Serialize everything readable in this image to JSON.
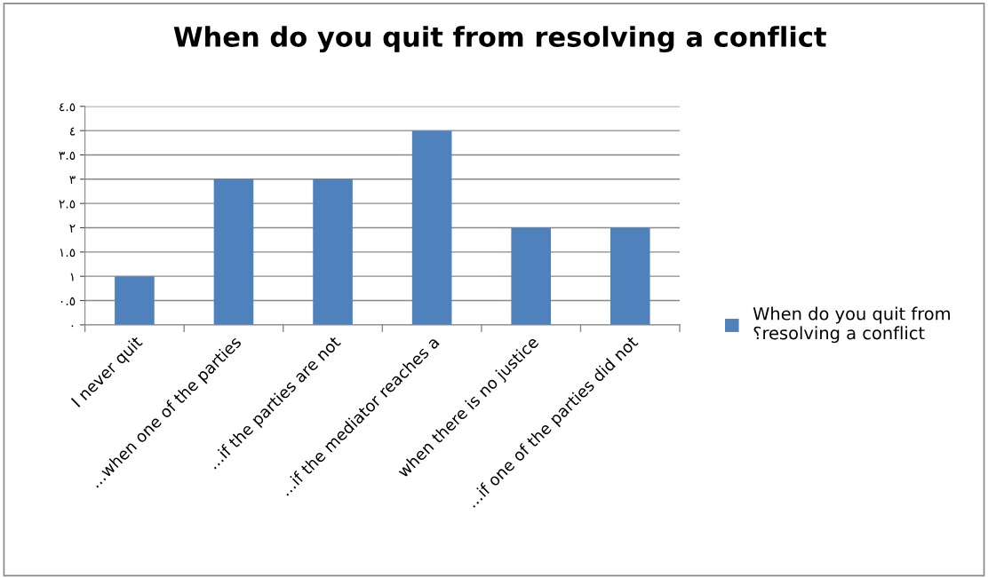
{
  "chart_data": {
    "type": "bar",
    "title": "When do you quit from resolving a conflict",
    "categories": [
      "I never quit",
      "...when one of the parties",
      "...if the parties are not",
      "...if the mediator reaches a",
      "when there is no justice",
      "...if one of the parties did not"
    ],
    "series": [
      {
        "name": "When do you quit from\n؟resolving a conflict",
        "color": "#4f81bd",
        "values": [
          1,
          3,
          3,
          4,
          2,
          2
        ]
      }
    ],
    "ylim": [
      0,
      4.5
    ],
    "yticks": [
      {
        "value": 0,
        "label": "٠"
      },
      {
        "value": 0.5,
        "label": "٠.٥"
      },
      {
        "value": 1,
        "label": "١"
      },
      {
        "value": 1.5,
        "label": "١.٥"
      },
      {
        "value": 2,
        "label": "٢"
      },
      {
        "value": 2.5,
        "label": "٢.٥"
      },
      {
        "value": 3,
        "label": "٣"
      },
      {
        "value": 3.5,
        "label": "٣.٥"
      },
      {
        "value": 4,
        "label": "٤"
      },
      {
        "value": 4.5,
        "label": "٤.٥"
      }
    ],
    "grid": "y",
    "legend": "right"
  }
}
